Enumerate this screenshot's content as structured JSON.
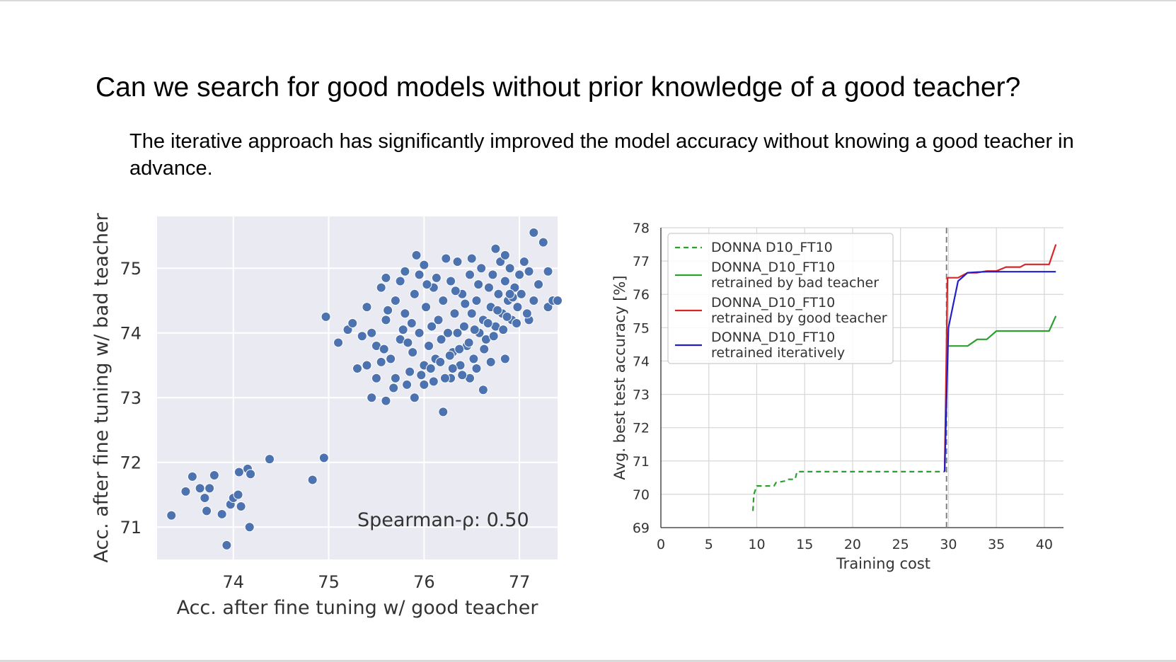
{
  "slide": {
    "title": "Can we search for good models without prior knowledge of a good teacher?",
    "subtitle": "The iterative approach has significantly improved the model accuracy without knowing a good teacher in advance."
  },
  "chart_data": [
    {
      "type": "scatter",
      "xlabel": "Acc. after fine tuning w/ good teacher",
      "ylabel": "Acc. after fine tuning w/ bad teacher",
      "xlim": [
        73.2,
        77.4
      ],
      "ylim": [
        70.5,
        75.8
      ],
      "xticks": [
        74,
        75,
        76,
        77
      ],
      "yticks": [
        71,
        72,
        73,
        74,
        75
      ],
      "grid": true,
      "background": "#eaeaf2",
      "marker_color": "#4c72b0",
      "annotation": "Spearman-ρ: 0.50",
      "points": [
        [
          73.35,
          71.18
        ],
        [
          73.5,
          71.55
        ],
        [
          73.57,
          71.78
        ],
        [
          73.65,
          71.6
        ],
        [
          73.7,
          71.45
        ],
        [
          73.72,
          71.25
        ],
        [
          73.75,
          71.6
        ],
        [
          73.8,
          71.8
        ],
        [
          73.88,
          71.2
        ],
        [
          73.93,
          70.72
        ],
        [
          73.97,
          71.35
        ],
        [
          74.0,
          71.45
        ],
        [
          74.05,
          71.5
        ],
        [
          74.08,
          71.32
        ],
        [
          74.06,
          71.85
        ],
        [
          74.15,
          71.9
        ],
        [
          74.18,
          71.82
        ],
        [
          74.17,
          71.0
        ],
        [
          74.38,
          72.05
        ],
        [
          74.83,
          71.73
        ],
        [
          74.95,
          72.07
        ],
        [
          74.97,
          74.25
        ],
        [
          75.1,
          73.85
        ],
        [
          75.2,
          74.05
        ],
        [
          75.25,
          74.15
        ],
        [
          75.3,
          73.45
        ],
        [
          75.35,
          73.95
        ],
        [
          75.4,
          74.4
        ],
        [
          75.45,
          73.0
        ],
        [
          75.55,
          74.7
        ],
        [
          75.6,
          72.95
        ],
        [
          75.55,
          73.55
        ],
        [
          75.9,
          73.0
        ],
        [
          75.92,
          75.2
        ],
        [
          75.95,
          74.9
        ],
        [
          76.2,
          72.78
        ],
        [
          76.23,
          75.15
        ],
        [
          76.28,
          73.3
        ],
        [
          76.48,
          73.3
        ],
        [
          76.62,
          73.12
        ],
        [
          76.75,
          75.3
        ],
        [
          76.85,
          73.6
        ],
        [
          77.1,
          74.2
        ],
        [
          77.15,
          75.55
        ],
        [
          77.25,
          75.4
        ],
        [
          77.3,
          74.4
        ],
        [
          77.35,
          74.5
        ],
        [
          77.4,
          74.5
        ],
        [
          77.3,
          74.95
        ],
        [
          75.5,
          73.8
        ],
        [
          75.6,
          74.2
        ],
        [
          75.65,
          73.6
        ],
        [
          75.7,
          74.5
        ],
        [
          75.75,
          73.9
        ],
        [
          75.8,
          74.3
        ],
        [
          75.85,
          73.4
        ],
        [
          75.88,
          73.7
        ],
        [
          75.9,
          74.6
        ],
        [
          75.95,
          74.0
        ],
        [
          76.0,
          73.5
        ],
        [
          76.02,
          74.4
        ],
        [
          76.05,
          73.8
        ],
        [
          76.08,
          74.1
        ],
        [
          76.1,
          74.7
        ],
        [
          76.12,
          73.6
        ],
        [
          76.15,
          74.2
        ],
        [
          76.18,
          73.9
        ],
        [
          76.2,
          74.5
        ],
        [
          76.22,
          73.3
        ],
        [
          76.25,
          74.0
        ],
        [
          76.28,
          74.8
        ],
        [
          76.3,
          73.7
        ],
        [
          76.32,
          74.3
        ],
        [
          76.35,
          74.0
        ],
        [
          76.38,
          73.5
        ],
        [
          76.4,
          74.6
        ],
        [
          76.42,
          74.1
        ],
        [
          76.45,
          73.8
        ],
        [
          76.48,
          74.9
        ],
        [
          76.5,
          74.3
        ],
        [
          76.52,
          73.6
        ],
        [
          76.55,
          74.5
        ],
        [
          76.58,
          74.0
        ],
        [
          76.6,
          75.0
        ],
        [
          76.62,
          74.2
        ],
        [
          76.65,
          73.9
        ],
        [
          76.68,
          74.7
        ],
        [
          76.7,
          74.4
        ],
        [
          76.72,
          74.9
        ],
        [
          76.75,
          74.1
        ],
        [
          76.78,
          74.6
        ],
        [
          76.8,
          75.1
        ],
        [
          76.82,
          74.3
        ],
        [
          76.85,
          74.8
        ],
        [
          76.88,
          74.5
        ],
        [
          76.9,
          75.0
        ],
        [
          76.92,
          74.2
        ],
        [
          76.95,
          74.7
        ],
        [
          76.98,
          74.4
        ],
        [
          77.0,
          74.9
        ],
        [
          77.02,
          74.6
        ],
        [
          77.05,
          75.1
        ],
        [
          77.08,
          74.3
        ],
        [
          75.7,
          73.3
        ],
        [
          75.75,
          74.8
        ],
        [
          75.82,
          73.2
        ],
        [
          75.87,
          74.15
        ],
        [
          75.97,
          73.35
        ],
        [
          76.03,
          74.75
        ],
        [
          76.07,
          73.45
        ],
        [
          76.13,
          74.85
        ],
        [
          76.17,
          73.55
        ],
        [
          76.27,
          73.65
        ],
        [
          76.33,
          74.65
        ],
        [
          76.37,
          73.75
        ],
        [
          76.43,
          74.45
        ],
        [
          76.47,
          73.85
        ],
        [
          76.53,
          74.05
        ],
        [
          76.57,
          74.75
        ],
        [
          76.63,
          73.75
        ],
        [
          76.67,
          74.15
        ],
        [
          76.73,
          73.95
        ],
        [
          76.77,
          74.35
        ],
        [
          76.83,
          74.05
        ],
        [
          76.87,
          74.25
        ],
        [
          76.93,
          74.55
        ],
        [
          76.97,
          74.15
        ],
        [
          75.4,
          73.5
        ],
        [
          75.45,
          74.0
        ],
        [
          75.5,
          73.3
        ],
        [
          75.58,
          73.75
        ],
        [
          75.62,
          74.35
        ],
        [
          75.68,
          73.15
        ],
        [
          75.78,
          74.05
        ],
        [
          75.83,
          73.85
        ],
        [
          76.0,
          73.2
        ],
        [
          76.1,
          73.25
        ],
        [
          76.3,
          73.45
        ],
        [
          76.4,
          73.35
        ],
        [
          76.55,
          73.45
        ],
        [
          76.7,
          73.55
        ],
        [
          76.5,
          75.15
        ],
        [
          76.35,
          75.1
        ],
        [
          76.0,
          75.05
        ],
        [
          75.8,
          74.95
        ],
        [
          75.6,
          74.85
        ],
        [
          76.85,
          75.2
        ],
        [
          77.1,
          74.95
        ],
        [
          77.2,
          74.75
        ],
        [
          76.9,
          74.6
        ],
        [
          77.15,
          74.5
        ]
      ]
    },
    {
      "type": "line",
      "xlabel": "Training cost",
      "ylabel": "Avg. best test accuracy [%]",
      "xlim": [
        0,
        42
      ],
      "ylim": [
        69,
        78
      ],
      "xticks": [
        0,
        5,
        10,
        15,
        20,
        25,
        30,
        35,
        40
      ],
      "yticks": [
        69,
        70,
        71,
        72,
        73,
        74,
        75,
        76,
        77,
        78
      ],
      "grid": true,
      "legend_position": "top-left",
      "vline": {
        "x": 29.8,
        "style": "dashed",
        "color": "#808080"
      },
      "series": [
        {
          "name": "DONNA D10_FT10",
          "color": "#2ca02c",
          "style": "dashed",
          "points": [
            [
              9.6,
              69.5
            ],
            [
              9.7,
              70.0
            ],
            [
              10.0,
              70.25
            ],
            [
              11.8,
              70.25
            ],
            [
              12.0,
              70.35
            ],
            [
              13.0,
              70.4
            ],
            [
              13.2,
              70.45
            ],
            [
              14.0,
              70.45
            ],
            [
              14.2,
              70.68
            ],
            [
              29.6,
              70.68
            ]
          ]
        },
        {
          "name": "DONNA_D10_FT10\nretrained by bad teacher",
          "color": "#2ca02c",
          "style": "solid",
          "points": [
            [
              29.6,
              70.68
            ],
            [
              29.9,
              74.45
            ],
            [
              32.0,
              74.45
            ],
            [
              33.0,
              74.65
            ],
            [
              34.0,
              74.65
            ],
            [
              35.0,
              74.9
            ],
            [
              40.5,
              74.9
            ],
            [
              41.2,
              75.35
            ]
          ]
        },
        {
          "name": "DONNA_D10_FT10\nretrained by good teacher",
          "color": "#d62728",
          "style": "solid",
          "points": [
            [
              29.6,
              70.68
            ],
            [
              29.9,
              76.5
            ],
            [
              31.0,
              76.5
            ],
            [
              32.0,
              76.65
            ],
            [
              33.0,
              76.65
            ],
            [
              34.0,
              76.7
            ],
            [
              35.0,
              76.7
            ],
            [
              36.0,
              76.82
            ],
            [
              37.5,
              76.82
            ],
            [
              38.0,
              76.9
            ],
            [
              40.5,
              76.9
            ],
            [
              41.2,
              77.5
            ]
          ]
        },
        {
          "name": "DONNA_D10_FT10\nretrained iteratively",
          "color": "#1f1fcc",
          "style": "solid",
          "points": [
            [
              29.6,
              70.68
            ],
            [
              30.0,
              75.0
            ],
            [
              31.0,
              76.4
            ],
            [
              32.0,
              76.65
            ],
            [
              33.0,
              76.67
            ],
            [
              34.0,
              76.68
            ],
            [
              41.2,
              76.68
            ]
          ]
        }
      ]
    }
  ]
}
